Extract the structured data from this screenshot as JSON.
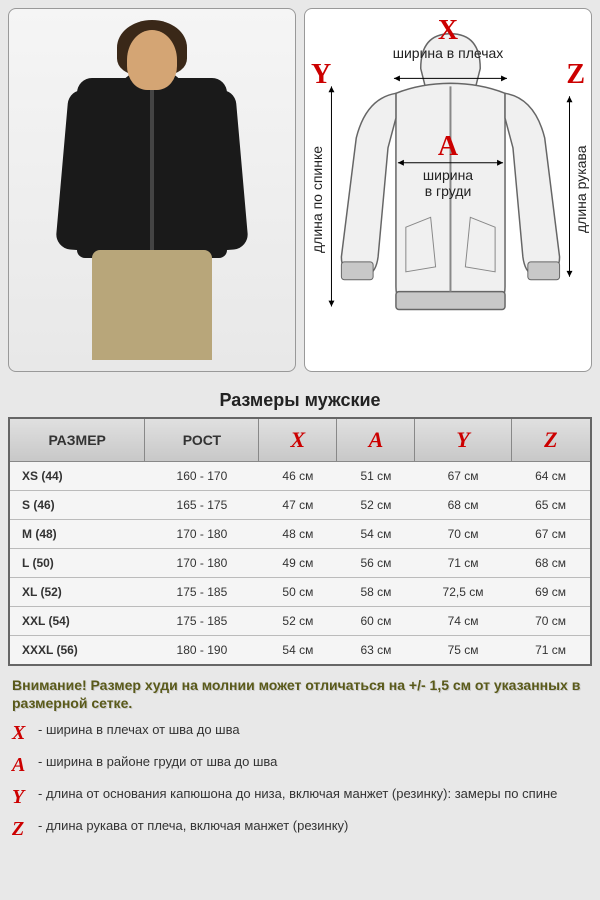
{
  "diagram": {
    "markers": {
      "X": "X",
      "A": "A",
      "Y": "Y",
      "Z": "Z"
    },
    "labels": {
      "shoulder_width": "ширина в плечах",
      "chest_width_1": "ширина",
      "chest_width_2": "в груди",
      "back_length": "длина по спинке",
      "sleeve_length": "длина рукава"
    }
  },
  "table": {
    "title": "Размеры мужские",
    "headers": {
      "size": "РАЗМЕР",
      "height": "РОСТ",
      "X": "X",
      "A": "A",
      "Y": "Y",
      "Z": "Z"
    },
    "rows": [
      {
        "size": "XS (44)",
        "height": "160 - 170",
        "x": "46 см",
        "a": "51 см",
        "y": "67 см",
        "z": "64 см"
      },
      {
        "size": "S (46)",
        "height": "165 - 175",
        "x": "47 см",
        "a": "52 см",
        "y": "68 см",
        "z": "65 см"
      },
      {
        "size": "M (48)",
        "height": "170 - 180",
        "x": "48 см",
        "a": "54 см",
        "y": "70 см",
        "z": "67 см"
      },
      {
        "size": "L (50)",
        "height": "170 - 180",
        "x": "49 см",
        "a": "56 см",
        "y": "71 см",
        "z": "68 см"
      },
      {
        "size": "XL (52)",
        "height": "175 - 185",
        "x": "50 см",
        "a": "58 см",
        "y": "72,5 см",
        "z": "69 см"
      },
      {
        "size": "XXL (54)",
        "height": "175 - 185",
        "x": "52 см",
        "a": "60 см",
        "y": "74 см",
        "z": "70 см"
      },
      {
        "size": "XXXL (56)",
        "height": "180 - 190",
        "x": "54 см",
        "a": "63 см",
        "y": "75 см",
        "z": "71 см"
      }
    ]
  },
  "warning": "Внимание! Размер худи на молнии может отличаться на +/- 1,5 см от указанных в размерной сетке.",
  "legend": {
    "X": "- ширина в плечах от шва до шва",
    "A": "- ширина в районе груди от шва до шва",
    "Y": "- длина от основания капюшона до низа, включая манжет (резинку): замеры по спине",
    "Z": "- длина рукава от плеча, включая манжет (резинку)"
  },
  "colors": {
    "accent": "#cc0000",
    "panel_bg": "#ffffff",
    "body_bg": "#e8e8e8",
    "border": "#888888"
  }
}
